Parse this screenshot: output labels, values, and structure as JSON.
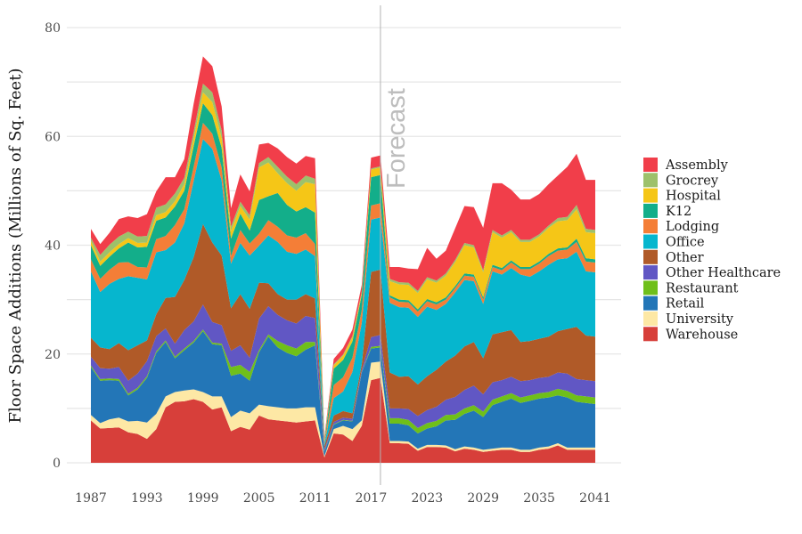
{
  "chart_data": {
    "type": "area",
    "stacked": true,
    "title": "",
    "xlabel": "",
    "ylabel": "Floor Space Additions (Millions of Sq. Feet)",
    "xlim": [
      1987,
      2041
    ],
    "ylim": [
      0,
      80
    ],
    "x_ticks": [
      1987,
      1993,
      1999,
      2005,
      2011,
      2017,
      2023,
      2029,
      2035,
      2041
    ],
    "y_ticks": [
      0,
      20,
      40,
      60,
      80
    ],
    "grid": true,
    "legend_position": "right",
    "annotations": [
      {
        "text": "Forecast",
        "x": 2018,
        "orientation": "vertical"
      }
    ],
    "forecast_start": 2018,
    "x": [
      1987,
      1988,
      1989,
      1990,
      1991,
      1992,
      1993,
      1994,
      1995,
      1996,
      1997,
      1998,
      1999,
      2000,
      2001,
      2002,
      2003,
      2004,
      2005,
      2006,
      2007,
      2008,
      2009,
      2010,
      2011,
      2012,
      2013,
      2014,
      2015,
      2016,
      2017,
      2018,
      2019,
      2020,
      2021,
      2022,
      2023,
      2024,
      2025,
      2026,
      2027,
      2028,
      2029,
      2030,
      2031,
      2032,
      2033,
      2034,
      2035,
      2036,
      2037,
      2038,
      2039,
      2040,
      2041
    ],
    "series": [
      {
        "name": "Warehouse",
        "color": "#d73f3a",
        "values": [
          7.8,
          6.3,
          6.4,
          6.5,
          5.6,
          5.3,
          4.4,
          6.2,
          10.2,
          11.2,
          11.3,
          11.7,
          11.2,
          9.8,
          10.2,
          5.8,
          6.6,
          6.1,
          8.7,
          8.0,
          7.8,
          7.6,
          7.4,
          7.6,
          7.8,
          1.0,
          5.4,
          5.2,
          4.0,
          6.8,
          15.2,
          15.6,
          3.6,
          3.6,
          3.5,
          2.2,
          2.9,
          2.9,
          2.8,
          2.1,
          2.6,
          2.4,
          2.0,
          2.2,
          2.4,
          2.4,
          2.0,
          2.0,
          2.4,
          2.6,
          3.2,
          2.4,
          2.4,
          2.4,
          2.4
        ]
      },
      {
        "name": "University",
        "color": "#fde8a5",
        "values": [
          1.0,
          1.0,
          1.6,
          1.8,
          2.0,
          2.4,
          3.0,
          2.8,
          2.0,
          1.8,
          2.0,
          1.8,
          1.8,
          2.4,
          2.0,
          2.6,
          3.0,
          3.0,
          2.0,
          2.4,
          2.4,
          2.4,
          2.6,
          2.6,
          2.4,
          0.2,
          0.8,
          1.6,
          2.2,
          1.0,
          3.2,
          3.0,
          0.4,
          0.4,
          0.4,
          0.4,
          0.4,
          0.4,
          0.4,
          0.4,
          0.4,
          0.4,
          0.4,
          0.4,
          0.4,
          0.4,
          0.4,
          0.4,
          0.4,
          0.4,
          0.4,
          0.4,
          0.4,
          0.4,
          0.4
        ]
      },
      {
        "name": "Retail",
        "color": "#2376b7",
        "values": [
          8.8,
          7.8,
          7.2,
          6.8,
          4.8,
          5.8,
          8.2,
          11.2,
          10.0,
          6.2,
          7.4,
          8.6,
          11.2,
          9.6,
          9.4,
          7.6,
          6.8,
          6.0,
          9.6,
          12.8,
          11.0,
          10.2,
          9.6,
          10.6,
          11.4,
          0.8,
          0.8,
          1.0,
          1.4,
          8.8,
          2.6,
          2.6,
          3.2,
          3.2,
          3.0,
          2.8,
          3.0,
          3.4,
          4.6,
          5.4,
          6.0,
          6.8,
          6.0,
          8.0,
          8.4,
          9.0,
          8.6,
          9.0,
          9.0,
          9.0,
          8.8,
          9.2,
          8.4,
          8.2,
          8.0
        ]
      },
      {
        "name": "Restaurant",
        "color": "#6fbf1a",
        "values": [
          0.3,
          0.3,
          0.3,
          0.3,
          0.3,
          0.3,
          0.3,
          0.3,
          0.3,
          0.3,
          0.3,
          0.3,
          0.3,
          0.3,
          0.3,
          1.6,
          1.6,
          1.6,
          0.4,
          0.4,
          1.2,
          1.4,
          1.4,
          1.4,
          0.6,
          0.1,
          0.1,
          0.1,
          0.1,
          0.1,
          0.3,
          0.3,
          1.0,
          1.0,
          1.0,
          1.0,
          1.0,
          1.0,
          1.0,
          1.0,
          1.0,
          1.0,
          1.0,
          1.0,
          1.0,
          1.0,
          1.0,
          1.0,
          1.0,
          1.0,
          1.2,
          1.2,
          1.2,
          1.2,
          1.2
        ]
      },
      {
        "name": "Other Healthcare",
        "color": "#6157c4",
        "values": [
          1.6,
          2.0,
          1.8,
          2.2,
          2.4,
          2.6,
          2.8,
          2.8,
          2.2,
          2.4,
          3.4,
          3.6,
          4.6,
          3.8,
          3.4,
          3.0,
          3.6,
          2.6,
          5.8,
          5.2,
          4.8,
          4.6,
          4.6,
          4.8,
          4.4,
          0.4,
          0.4,
          0.4,
          0.4,
          0.4,
          1.8,
          2.0,
          1.8,
          1.8,
          2.0,
          2.2,
          2.4,
          2.6,
          2.8,
          3.2,
          3.4,
          3.6,
          3.2,
          3.2,
          3.0,
          3.0,
          3.0,
          2.8,
          2.8,
          2.8,
          3.0,
          3.2,
          3.0,
          3.0,
          3.0
        ]
      },
      {
        "name": "Other",
        "color": "#b05a28",
        "values": [
          3.5,
          3.8,
          3.6,
          4.4,
          5.6,
          5.2,
          3.8,
          4.0,
          5.6,
          8.6,
          9.2,
          11.8,
          14.8,
          14.6,
          12.8,
          7.8,
          9.4,
          9.0,
          6.6,
          4.2,
          3.8,
          3.8,
          4.4,
          4.0,
          3.6,
          0.6,
          1.2,
          1.2,
          1.0,
          1.0,
          12.0,
          12.0,
          6.6,
          5.8,
          6.0,
          5.8,
          6.2,
          6.8,
          7.0,
          7.6,
          8.0,
          8.0,
          6.6,
          8.8,
          8.8,
          8.6,
          7.2,
          7.2,
          7.2,
          7.4,
          7.6,
          8.2,
          9.6,
          8.2,
          8.2
        ]
      },
      {
        "name": "Office",
        "color": "#06b6ce",
        "values": [
          12.2,
          10.2,
          12.0,
          11.8,
          13.6,
          12.4,
          11.2,
          11.4,
          8.8,
          10.0,
          10.4,
          14.0,
          15.6,
          17.2,
          13.8,
          8.2,
          9.4,
          9.8,
          6.8,
          8.8,
          9.6,
          8.8,
          8.4,
          8.2,
          7.8,
          0.4,
          3.2,
          3.6,
          7.6,
          7.6,
          9.6,
          9.6,
          12.8,
          12.8,
          12.6,
          12.4,
          12.8,
          11.0,
          10.6,
          11.6,
          12.2,
          11.2,
          10.0,
          11.6,
          10.6,
          11.4,
          12.4,
          11.8,
          12.4,
          13.2,
          13.2,
          13.0,
          13.8,
          11.8,
          11.8
        ]
      },
      {
        "name": "Lodging",
        "color": "#f47e37",
        "values": [
          2.2,
          2.4,
          2.6,
          3.0,
          2.6,
          2.0,
          2.2,
          2.4,
          2.6,
          3.2,
          2.6,
          2.6,
          3.0,
          2.8,
          2.4,
          1.4,
          2.4,
          2.2,
          2.2,
          2.8,
          2.8,
          3.0,
          3.0,
          3.0,
          2.2,
          0.2,
          2.4,
          2.6,
          2.6,
          2.4,
          2.6,
          2.6,
          1.0,
          1.0,
          1.0,
          1.0,
          1.0,
          1.0,
          0.8,
          0.8,
          0.8,
          0.8,
          0.8,
          0.8,
          0.8,
          1.0,
          1.0,
          1.4,
          1.4,
          1.6,
          1.6,
          1.6,
          1.8,
          1.8,
          1.8
        ]
      },
      {
        "name": "K12",
        "color": "#13ae8a",
        "values": [
          2.6,
          2.4,
          2.4,
          2.6,
          3.6,
          3.6,
          3.8,
          3.4,
          3.4,
          3.4,
          3.4,
          3.8,
          3.6,
          3.4,
          3.6,
          3.2,
          3.0,
          2.4,
          6.2,
          4.4,
          6.2,
          5.6,
          4.8,
          4.8,
          5.8,
          0.2,
          3.0,
          3.2,
          3.0,
          2.8,
          5.2,
          5.2,
          0.4,
          0.4,
          0.4,
          0.4,
          0.4,
          0.4,
          0.4,
          0.4,
          0.4,
          0.4,
          0.4,
          0.4,
          0.4,
          0.4,
          0.4,
          0.4,
          0.4,
          0.4,
          0.4,
          0.4,
          0.6,
          0.6,
          0.6
        ]
      },
      {
        "name": "Hospital",
        "color": "#f5c617",
        "values": [
          0.8,
          0.8,
          0.8,
          0.8,
          0.8,
          0.8,
          0.8,
          1.0,
          1.0,
          1.0,
          1.2,
          1.4,
          2.0,
          2.4,
          1.8,
          1.4,
          1.4,
          2.0,
          6.0,
          6.2,
          3.6,
          4.0,
          3.8,
          4.6,
          5.2,
          0.4,
          0.6,
          0.8,
          0.8,
          0.4,
          1.4,
          1.4,
          2.6,
          2.8,
          2.8,
          3.0,
          3.6,
          3.6,
          4.0,
          4.4,
          5.2,
          5.0,
          4.6,
          6.0,
          5.6,
          5.2,
          4.6,
          4.6,
          4.6,
          4.8,
          5.0,
          5.0,
          5.4,
          4.8,
          4.8
        ]
      },
      {
        "name": "Grocrey",
        "color": "#9dc16b",
        "values": [
          0.6,
          1.2,
          1.4,
          1.4,
          1.2,
          1.2,
          1.2,
          1.4,
          1.4,
          1.4,
          1.2,
          1.2,
          1.6,
          1.8,
          1.4,
          0.8,
          0.8,
          0.8,
          0.8,
          1.0,
          1.2,
          1.2,
          1.2,
          1.2,
          1.0,
          0.1,
          0.2,
          0.2,
          0.2,
          0.2,
          0.2,
          0.2,
          0.4,
          0.4,
          0.4,
          0.4,
          0.4,
          0.4,
          0.4,
          0.4,
          0.4,
          0.4,
          0.4,
          0.4,
          0.4,
          0.4,
          0.4,
          0.4,
          0.4,
          0.4,
          0.6,
          0.6,
          0.8,
          0.6,
          0.6
        ]
      },
      {
        "name": "Assembly",
        "color": "#f13e4a",
        "values": [
          1.6,
          2.0,
          2.2,
          3.2,
          2.8,
          3.4,
          4.0,
          3.0,
          5.0,
          3.0,
          3.4,
          5.2,
          5.0,
          4.8,
          4.4,
          3.4,
          5.0,
          4.4,
          3.4,
          2.6,
          3.4,
          3.6,
          3.8,
          3.6,
          3.8,
          0.4,
          1.0,
          1.2,
          1.2,
          1.2,
          2.0,
          2.0,
          2.2,
          2.8,
          2.6,
          4.0,
          5.4,
          4.0,
          4.2,
          5.8,
          6.8,
          7.0,
          7.8,
          8.6,
          9.6,
          7.4,
          7.4,
          7.4,
          7.4,
          7.6,
          7.8,
          9.2,
          9.4,
          9.0,
          9.2
        ]
      }
    ]
  }
}
